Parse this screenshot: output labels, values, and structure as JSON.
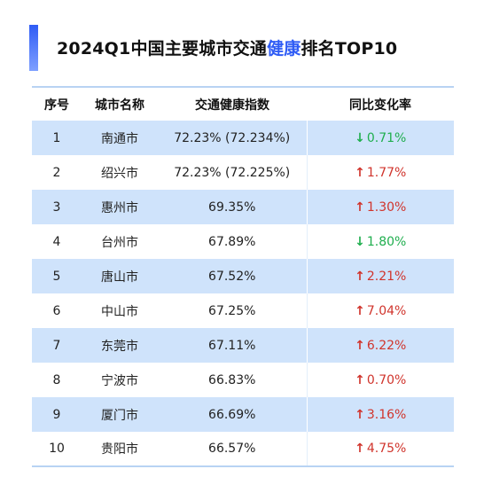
{
  "title": {
    "prefix": "2024Q1中国主要城市交通",
    "highlight": "健康",
    "suffix": "排名TOP10"
  },
  "headers": [
    "序号",
    "城市名称",
    "交通健康指数",
    "同比变化率"
  ],
  "colors": {
    "accent": "#2f5cf5",
    "stripe": "#cfe3fb",
    "up": "#d0342c",
    "down": "#1fae4e"
  },
  "rows": [
    {
      "rank": "1",
      "city": "南通市",
      "index": "72.23% (72.234%)",
      "direction": "down",
      "arrow_icon": "arrow-down-icon",
      "arrow": "↓",
      "change": "0.71%"
    },
    {
      "rank": "2",
      "city": "绍兴市",
      "index": "72.23% (72.225%)",
      "direction": "up",
      "arrow_icon": "arrow-up-icon",
      "arrow": "↑",
      "change": "1.77%"
    },
    {
      "rank": "3",
      "city": "惠州市",
      "index": "69.35%",
      "direction": "up",
      "arrow_icon": "arrow-up-icon",
      "arrow": "↑",
      "change": "1.30%"
    },
    {
      "rank": "4",
      "city": "台州市",
      "index": "67.89%",
      "direction": "down",
      "arrow_icon": "arrow-down-icon",
      "arrow": "↓",
      "change": "1.80%"
    },
    {
      "rank": "5",
      "city": "唐山市",
      "index": "67.52%",
      "direction": "up",
      "arrow_icon": "arrow-up-icon",
      "arrow": "↑",
      "change": "2.21%"
    },
    {
      "rank": "6",
      "city": "中山市",
      "index": "67.25%",
      "direction": "up",
      "arrow_icon": "arrow-up-icon",
      "arrow": "↑",
      "change": "7.04%"
    },
    {
      "rank": "7",
      "city": "东莞市",
      "index": "67.11%",
      "direction": "up",
      "arrow_icon": "arrow-up-icon",
      "arrow": "↑",
      "change": "6.22%"
    },
    {
      "rank": "8",
      "city": "宁波市",
      "index": "66.83%",
      "direction": "up",
      "arrow_icon": "arrow-up-icon",
      "arrow": "↑",
      "change": "0.70%"
    },
    {
      "rank": "9",
      "city": "厦门市",
      "index": "66.69%",
      "direction": "up",
      "arrow_icon": "arrow-up-icon",
      "arrow": "↑",
      "change": "3.16%"
    },
    {
      "rank": "10",
      "city": "贵阳市",
      "index": "66.57%",
      "direction": "up",
      "arrow_icon": "arrow-up-icon",
      "arrow": "↑",
      "change": "4.75%"
    }
  ]
}
